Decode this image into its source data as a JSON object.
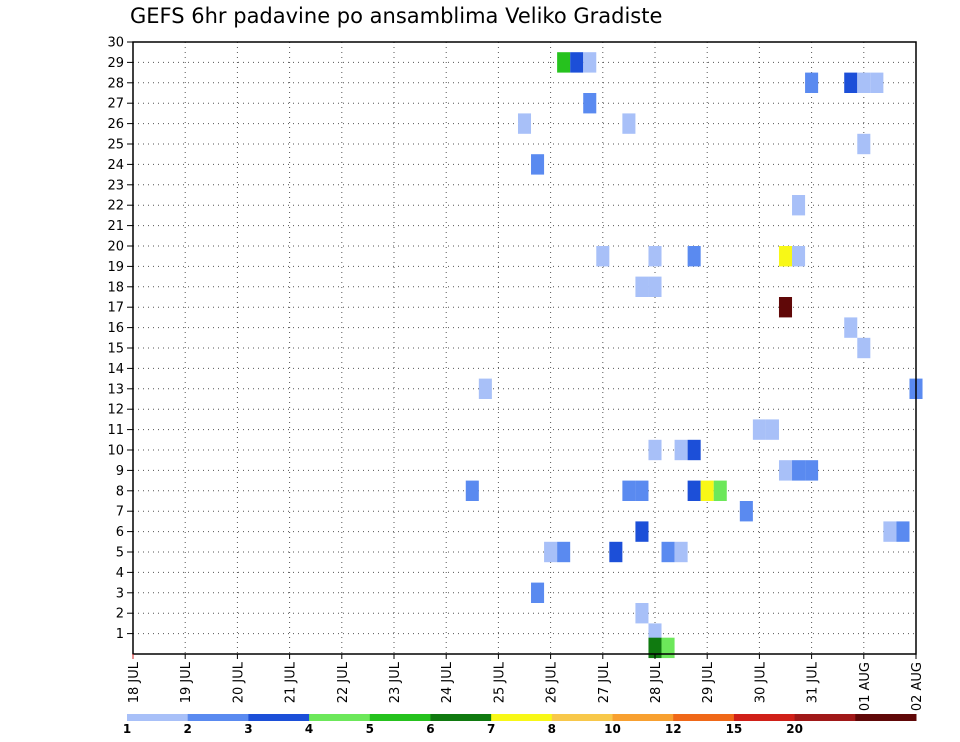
{
  "chart_data": {
    "type": "heatmap",
    "title": "GEFS 6hr padavine po ansamblima Veliko Gradiste",
    "xlabel": "",
    "ylabel": "",
    "x_tick_labels": [
      "18 JUL",
      "19 JUL",
      "20 JUL",
      "21 JUL",
      "22 JUL",
      "23 JUL",
      "24 JUL",
      "25 JUL",
      "26 JUL",
      "27 JUL",
      "28 JUL",
      "29 JUL",
      "30 JUL",
      "31 JUL",
      "01 AUG",
      "02 AUG"
    ],
    "x_range_days": [
      0,
      15
    ],
    "y_tick_labels": [
      "1",
      "2",
      "3",
      "4",
      "5",
      "6",
      "7",
      "8",
      "9",
      "10",
      "11",
      "12",
      "13",
      "14",
      "15",
      "16",
      "17",
      "18",
      "19",
      "20",
      "21",
      "22",
      "23",
      "24",
      "25",
      "26",
      "27",
      "28",
      "29",
      "30"
    ],
    "y_range": [
      0,
      30
    ],
    "grid": true,
    "colorbar": {
      "levels": [
        "1",
        "2",
        "3",
        "4",
        "5",
        "6",
        "7",
        "8",
        "10",
        "12",
        "15",
        "20"
      ],
      "colors": [
        "#a8c0f8",
        "#5a8af0",
        "#1c4fd8",
        "#6ce85a",
        "#26c21e",
        "#107a10",
        "#f8f816",
        "#f8c84a",
        "#f8a030",
        "#f06818",
        "#d02018",
        "#a01818",
        "#600808"
      ]
    },
    "cells": [
      {
        "x": 8.25,
        "y": 29,
        "c": 4
      },
      {
        "x": 8.5,
        "y": 29,
        "c": 2
      },
      {
        "x": 8.75,
        "y": 29,
        "c": 0
      },
      {
        "x": 13.0,
        "y": 28,
        "c": 1
      },
      {
        "x": 13.75,
        "y": 28,
        "c": 2
      },
      {
        "x": 14.0,
        "y": 28,
        "c": 0
      },
      {
        "x": 14.25,
        "y": 28,
        "c": 0
      },
      {
        "x": 8.75,
        "y": 27,
        "c": 1
      },
      {
        "x": 7.5,
        "y": 26,
        "c": 0
      },
      {
        "x": 9.5,
        "y": 26,
        "c": 0
      },
      {
        "x": 14.0,
        "y": 25,
        "c": 0
      },
      {
        "x": 7.75,
        "y": 24,
        "c": 1
      },
      {
        "x": 12.75,
        "y": 22,
        "c": 0
      },
      {
        "x": 9.0,
        "y": 19.5,
        "c": 0
      },
      {
        "x": 10.0,
        "y": 19.5,
        "c": 0
      },
      {
        "x": 10.75,
        "y": 19.5,
        "c": 1
      },
      {
        "x": 12.5,
        "y": 19.5,
        "c": 6
      },
      {
        "x": 12.75,
        "y": 19.5,
        "c": 0
      },
      {
        "x": 9.75,
        "y": 18,
        "c": 0
      },
      {
        "x": 10.0,
        "y": 18,
        "c": 0
      },
      {
        "x": 12.5,
        "y": 17,
        "c": 12
      },
      {
        "x": 13.75,
        "y": 16,
        "c": 0
      },
      {
        "x": 14.0,
        "y": 15,
        "c": 0
      },
      {
        "x": 15.0,
        "y": 13,
        "c": 1
      },
      {
        "x": 6.75,
        "y": 13,
        "c": 0
      },
      {
        "x": 12.0,
        "y": 11,
        "c": 0
      },
      {
        "x": 12.25,
        "y": 11,
        "c": 0
      },
      {
        "x": 10.0,
        "y": 10,
        "c": 0
      },
      {
        "x": 10.5,
        "y": 10,
        "c": 0
      },
      {
        "x": 10.75,
        "y": 10,
        "c": 2
      },
      {
        "x": 12.5,
        "y": 9,
        "c": 0
      },
      {
        "x": 12.75,
        "y": 9,
        "c": 1
      },
      {
        "x": 13.0,
        "y": 9,
        "c": 1
      },
      {
        "x": 6.5,
        "y": 8,
        "c": 1
      },
      {
        "x": 9.5,
        "y": 8,
        "c": 1
      },
      {
        "x": 9.75,
        "y": 8,
        "c": 1
      },
      {
        "x": 10.75,
        "y": 8,
        "c": 2
      },
      {
        "x": 11.0,
        "y": 8,
        "c": 6
      },
      {
        "x": 11.25,
        "y": 8,
        "c": 3
      },
      {
        "x": 11.75,
        "y": 7,
        "c": 1
      },
      {
        "x": 9.75,
        "y": 6,
        "c": 2
      },
      {
        "x": 14.5,
        "y": 6,
        "c": 0
      },
      {
        "x": 14.75,
        "y": 6,
        "c": 1
      },
      {
        "x": 8.0,
        "y": 5,
        "c": 0
      },
      {
        "x": 8.25,
        "y": 5,
        "c": 1
      },
      {
        "x": 9.25,
        "y": 5,
        "c": 2
      },
      {
        "x": 10.25,
        "y": 5,
        "c": 1
      },
      {
        "x": 10.5,
        "y": 5,
        "c": 0
      },
      {
        "x": 7.75,
        "y": 3,
        "c": 1
      },
      {
        "x": 9.75,
        "y": 2,
        "c": 0
      },
      {
        "x": 10.0,
        "y": 1,
        "c": 0
      },
      {
        "x": 10.0,
        "y": 0.3,
        "c": 5
      },
      {
        "x": 10.25,
        "y": 0.3,
        "c": 3
      }
    ]
  }
}
